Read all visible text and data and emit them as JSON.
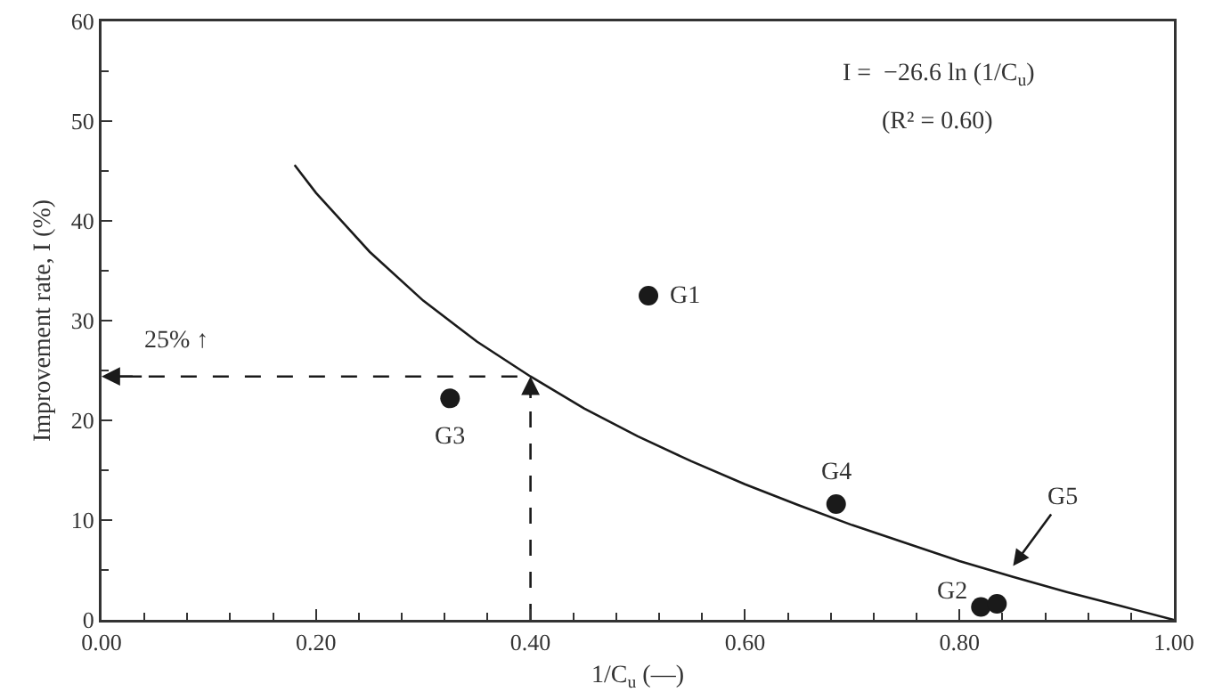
{
  "chart_data": {
    "type": "scatter",
    "xlabel": "1/C$_{u}$ (—)",
    "ylabel": "Improvement rate, I (%)",
    "xlim": [
      0,
      1
    ],
    "ylim": [
      0,
      60
    ],
    "xticks": [
      {
        "value": 0,
        "label": "0.00"
      },
      {
        "value": 0.2,
        "label": "0.20"
      },
      {
        "value": 0.4,
        "label": "0.40"
      },
      {
        "value": 0.6,
        "label": "0.60"
      },
      {
        "value": 0.8,
        "label": "0.80"
      },
      {
        "value": 1,
        "label": "1.00"
      }
    ],
    "yticks": [
      0,
      10,
      20,
      30,
      40,
      50,
      60
    ],
    "grid": false,
    "series": [
      {
        "color": "#1a1a1a",
        "marker": "circle",
        "x": [
          0.51,
          0.82,
          0.325,
          0.685,
          0.835
        ],
        "values": [
          32.5,
          1.3,
          22.2,
          11.6,
          1.6
        ]
      },
      {
        "type": "line",
        "color": "#1a1a1a",
        "line_style": "solid",
        "marker": "none",
        "x": [
          0.18,
          0.2,
          0.25,
          0.3,
          0.35,
          0.4,
          0.45,
          0.5,
          0.55,
          0.6,
          0.65,
          0.7,
          0.75,
          0.8,
          0.85,
          0.9,
          0.95,
          1.0
        ],
        "values": [
          45.6,
          42.8,
          36.9,
          32.0,
          27.9,
          24.4,
          21.2,
          18.4,
          15.9,
          13.6,
          11.5,
          9.5,
          7.7,
          5.9,
          4.3,
          2.8,
          1.4,
          0
        ]
      },
      {
        "type": "line",
        "color": "#1a1a1a",
        "line_style": "dashed",
        "marker": "none",
        "x": [
          0.4,
          0.4,
          0.0
        ],
        "values": [
          0,
          24.4,
          24.4
        ]
      }
    ],
    "annotations": [
      "I =  −26.6 ln (1/C$_{u}$)",
      "(R² = 0.60)",
      {
        "text": "25% ↑",
        "x": 0.07,
        "y": 24.4
      },
      {
        "text": "G1",
        "x": 0.51,
        "y": 32.5
      },
      {
        "text": "G2",
        "x": 0.82,
        "y": 1.3
      },
      {
        "text": "G3",
        "x": 0.325,
        "y": 22.2
      },
      {
        "text": "G4",
        "x": 0.685,
        "y": 11.6
      },
      {
        "text": "G5",
        "x": 0.85,
        "y": 5.4
      }
    ]
  }
}
